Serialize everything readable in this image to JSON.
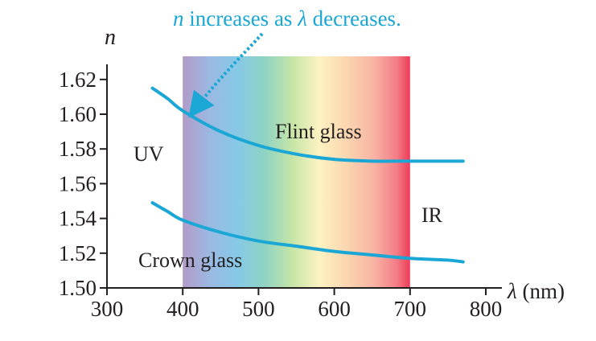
{
  "chart_data": {
    "type": "line",
    "title": "",
    "annotation": {
      "var": "n",
      "mid": " increases as ",
      "var2": "λ",
      "tail": " decreases."
    },
    "xlabel": "λ (nm)",
    "ylabel": "n",
    "xlim": [
      300,
      800
    ],
    "ylim": [
      1.5,
      1.625
    ],
    "x_ticks": [
      300,
      400,
      500,
      600,
      700,
      800
    ],
    "y_ticks": [
      1.5,
      1.52,
      1.54,
      1.56,
      1.58,
      1.6,
      1.62
    ],
    "x_tick_labels": [
      "300",
      "400",
      "500",
      "600",
      "700",
      "800"
    ],
    "y_tick_labels": [
      "1.50",
      "1.52",
      "1.54",
      "1.56",
      "1.58",
      "1.60",
      "1.62"
    ],
    "visible_spectrum": [
      400,
      700
    ],
    "regions": {
      "uv": "UV",
      "ir": "IR"
    },
    "grid": false,
    "series": [
      {
        "name": "Flint glass",
        "x": [
          360,
          380,
          400,
          450,
          500,
          550,
          600,
          650,
          700,
          750,
          770
        ],
        "values": [
          1.615,
          1.609,
          1.602,
          1.59,
          1.582,
          1.577,
          1.574,
          1.573,
          1.573,
          1.573,
          1.573
        ]
      },
      {
        "name": "Crown glass",
        "x": [
          360,
          380,
          400,
          450,
          500,
          550,
          600,
          650,
          700,
          750,
          770
        ],
        "values": [
          1.549,
          1.544,
          1.539,
          1.532,
          1.527,
          1.524,
          1.521,
          1.519,
          1.517,
          1.516,
          1.515
        ]
      }
    ],
    "colors": {
      "curve": "#1aa7d6",
      "annotation": "#1aa7d6",
      "axis": "#231f20",
      "ir_edge": "#ee3b56"
    }
  }
}
